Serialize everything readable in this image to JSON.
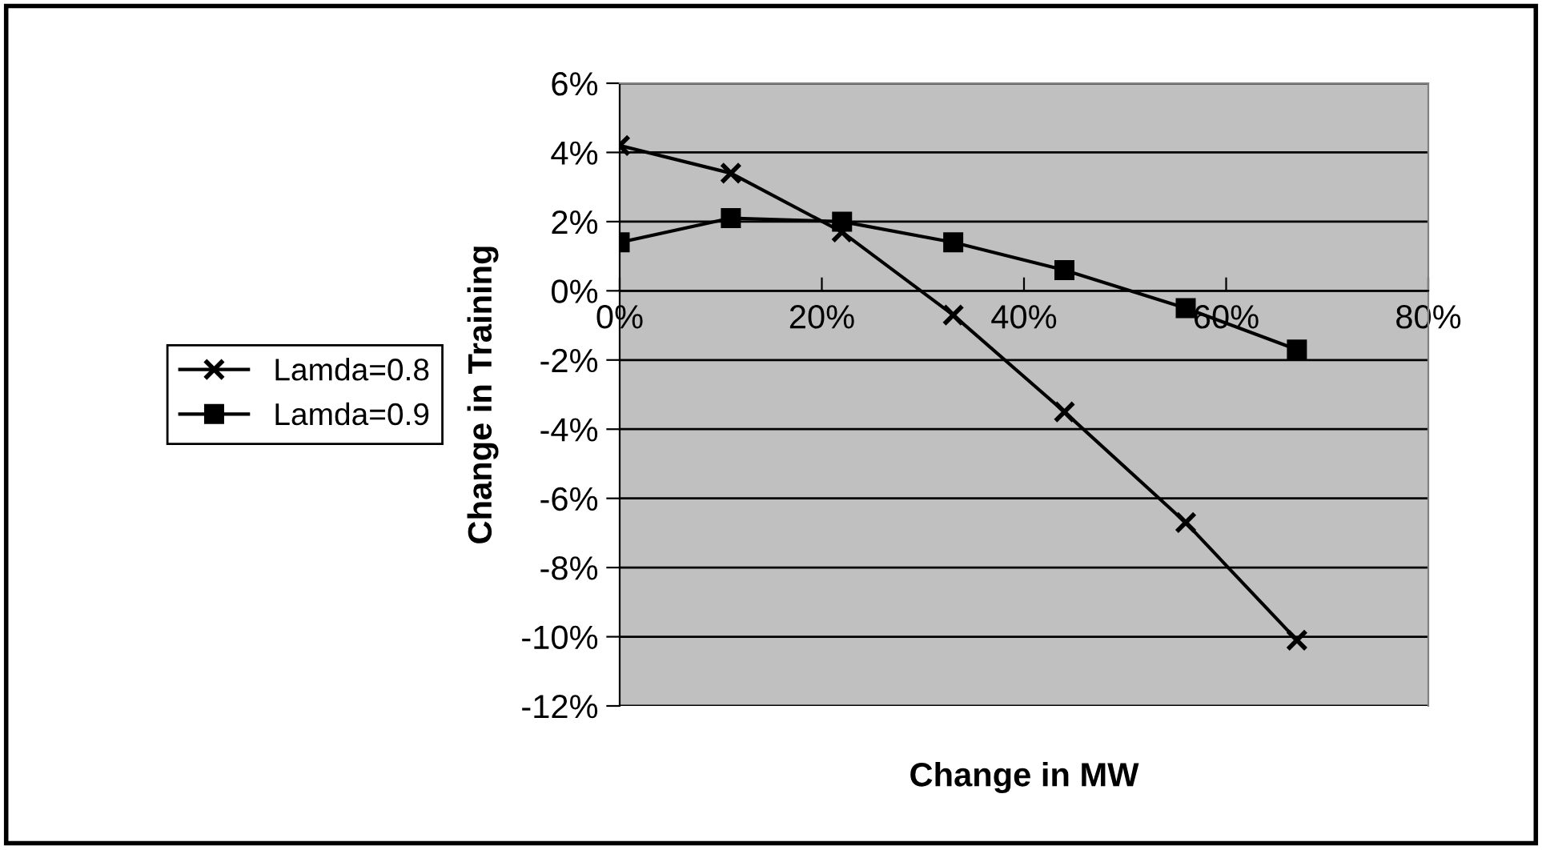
{
  "chart_data": {
    "type": "line",
    "xlabel": "Change in MW",
    "ylabel": "Change in Training",
    "x": [
      0,
      11,
      22,
      33,
      44,
      56,
      67
    ],
    "series": [
      {
        "name": "Lamda=0.8",
        "color": "#000000",
        "marker": "cross",
        "values": [
          4.2,
          3.4,
          1.7,
          -0.7,
          -3.5,
          -6.7,
          -10.1
        ]
      },
      {
        "name": "Lamda=0.9",
        "color": "#000000",
        "marker": "square",
        "values": [
          1.4,
          2.1,
          2.0,
          1.4,
          0.6,
          -0.5,
          -1.7
        ]
      }
    ],
    "xlim": [
      0,
      80
    ],
    "xticks": [
      {
        "value": 0,
        "label": "0%"
      },
      {
        "value": 20,
        "label": "20%"
      },
      {
        "value": 40,
        "label": "40%"
      },
      {
        "value": 60,
        "label": "60%"
      },
      {
        "value": 80,
        "label": "80%"
      }
    ],
    "ylim": [
      -12,
      6
    ],
    "yticks": [
      {
        "value": -12,
        "label": "-12%"
      },
      {
        "value": -10,
        "label": "-10%"
      },
      {
        "value": -8,
        "label": "-8%"
      },
      {
        "value": -6,
        "label": "-6%"
      },
      {
        "value": -4,
        "label": "-4%"
      },
      {
        "value": -2,
        "label": "-2%"
      },
      {
        "value": 0,
        "label": "0%"
      },
      {
        "value": 2,
        "label": "2%"
      },
      {
        "value": 4,
        "label": "4%"
      },
      {
        "value": 6,
        "label": "6%"
      }
    ],
    "grid": "y",
    "legend": "left",
    "line_style": "solid"
  }
}
